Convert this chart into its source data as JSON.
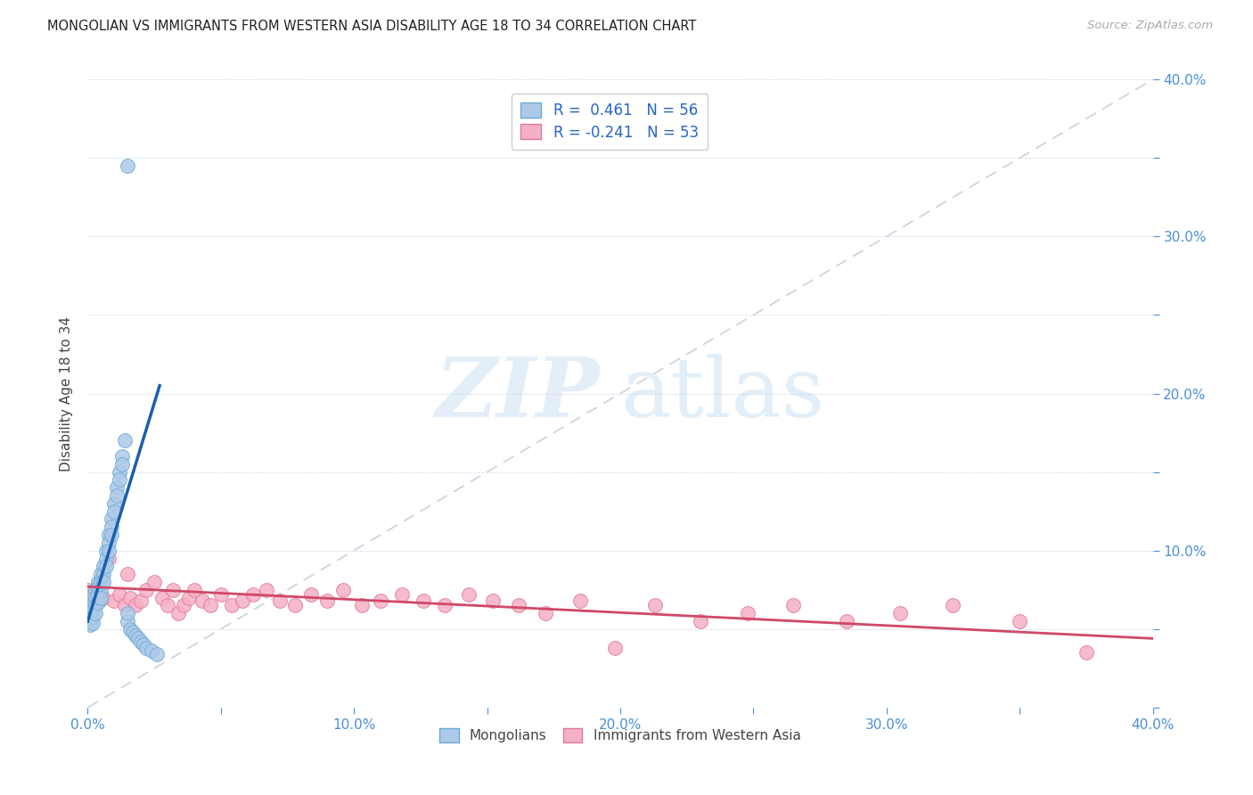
{
  "title": "MONGOLIAN VS IMMIGRANTS FROM WESTERN ASIA DISABILITY AGE 18 TO 34 CORRELATION CHART",
  "source": "Source: ZipAtlas.com",
  "ylabel": "Disability Age 18 to 34",
  "xlim": [
    0.0,
    0.4
  ],
  "ylim": [
    0.0,
    0.4
  ],
  "xticks": [
    0.0,
    0.05,
    0.1,
    0.15,
    0.2,
    0.25,
    0.3,
    0.35,
    0.4
  ],
  "yticks": [
    0.0,
    0.05,
    0.1,
    0.15,
    0.2,
    0.25,
    0.3,
    0.35,
    0.4
  ],
  "xtick_labels": [
    "0.0%",
    "",
    "10.0%",
    "",
    "20.0%",
    "",
    "30.0%",
    "",
    "40.0%"
  ],
  "ytick_labels_right": [
    "",
    "",
    "10.0%",
    "",
    "20.0%",
    "",
    "30.0%",
    "",
    "40.0%"
  ],
  "mongolian_fill": "#adc9e8",
  "mongolian_edge": "#6aaad6",
  "western_asia_fill": "#f5b0c5",
  "western_asia_edge": "#e07898",
  "trend_blue": "#1a5fad",
  "trend_pink": "#d04868",
  "diag_color": "#c5cdd8",
  "R_mon": 0.461,
  "N_mon": 56,
  "R_west": -0.241,
  "N_west": 53,
  "mongolian_x": [
    0.0,
    0.0,
    0.001,
    0.001,
    0.001,
    0.001,
    0.002,
    0.002,
    0.002,
    0.002,
    0.002,
    0.003,
    0.003,
    0.003,
    0.003,
    0.004,
    0.004,
    0.004,
    0.004,
    0.005,
    0.005,
    0.005,
    0.005,
    0.006,
    0.006,
    0.006,
    0.007,
    0.007,
    0.007,
    0.008,
    0.008,
    0.008,
    0.009,
    0.009,
    0.009,
    0.01,
    0.01,
    0.011,
    0.011,
    0.012,
    0.012,
    0.013,
    0.013,
    0.014,
    0.015,
    0.015,
    0.016,
    0.017,
    0.018,
    0.019,
    0.02,
    0.021,
    0.022,
    0.024,
    0.026,
    0.015
  ],
  "mongolian_y": [
    0.06,
    0.055,
    0.065,
    0.062,
    0.058,
    0.053,
    0.07,
    0.066,
    0.062,
    0.058,
    0.054,
    0.075,
    0.07,
    0.065,
    0.06,
    0.08,
    0.076,
    0.072,
    0.067,
    0.085,
    0.08,
    0.075,
    0.07,
    0.09,
    0.085,
    0.08,
    0.1,
    0.095,
    0.09,
    0.11,
    0.105,
    0.1,
    0.12,
    0.115,
    0.11,
    0.13,
    0.125,
    0.14,
    0.135,
    0.15,
    0.145,
    0.16,
    0.155,
    0.17,
    0.055,
    0.06,
    0.05,
    0.048,
    0.046,
    0.044,
    0.042,
    0.04,
    0.038,
    0.036,
    0.034,
    0.345
  ],
  "western_asia_x": [
    0.0,
    0.002,
    0.004,
    0.006,
    0.008,
    0.01,
    0.012,
    0.014,
    0.015,
    0.016,
    0.018,
    0.02,
    0.022,
    0.025,
    0.028,
    0.03,
    0.032,
    0.034,
    0.036,
    0.038,
    0.04,
    0.043,
    0.046,
    0.05,
    0.054,
    0.058,
    0.062,
    0.067,
    0.072,
    0.078,
    0.084,
    0.09,
    0.096,
    0.103,
    0.11,
    0.118,
    0.126,
    0.134,
    0.143,
    0.152,
    0.162,
    0.172,
    0.185,
    0.198,
    0.213,
    0.23,
    0.248,
    0.265,
    0.285,
    0.305,
    0.325,
    0.35,
    0.375
  ],
  "western_asia_y": [
    0.075,
    0.072,
    0.078,
    0.07,
    0.095,
    0.068,
    0.072,
    0.065,
    0.085,
    0.07,
    0.065,
    0.068,
    0.075,
    0.08,
    0.07,
    0.065,
    0.075,
    0.06,
    0.065,
    0.07,
    0.075,
    0.068,
    0.065,
    0.072,
    0.065,
    0.068,
    0.072,
    0.075,
    0.068,
    0.065,
    0.072,
    0.068,
    0.075,
    0.065,
    0.068,
    0.072,
    0.068,
    0.065,
    0.072,
    0.068,
    0.065,
    0.06,
    0.068,
    0.038,
    0.065,
    0.055,
    0.06,
    0.065,
    0.055,
    0.06,
    0.065,
    0.055,
    0.035
  ],
  "blue_trend_x": [
    0.0,
    0.027
  ],
  "blue_trend_y": [
    0.055,
    0.205
  ],
  "pink_trend_x": [
    0.0,
    0.4
  ],
  "pink_trend_y": [
    0.077,
    0.044
  ]
}
